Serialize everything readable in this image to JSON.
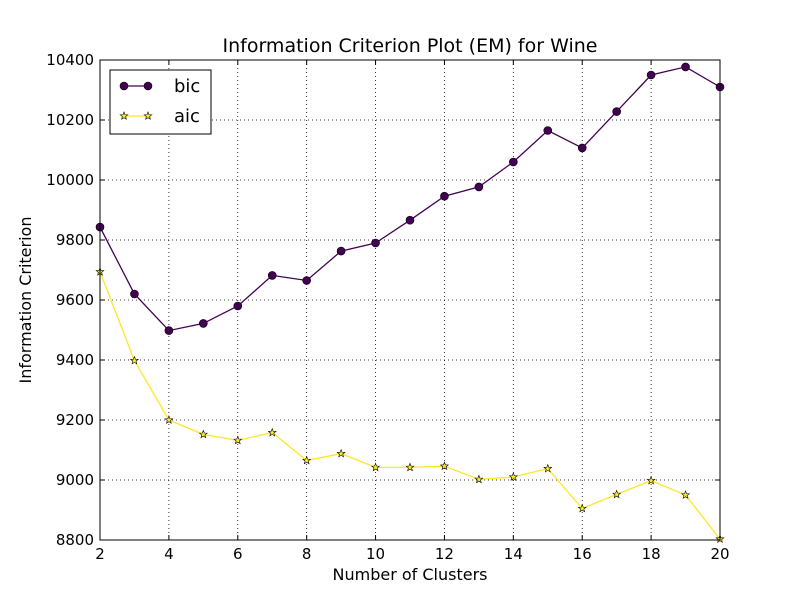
{
  "chart_data": {
    "type": "line",
    "title": "Information Criterion Plot (EM) for Wine",
    "xlabel": "Number of Clusters",
    "ylabel": "Information Criterion",
    "xlim": [
      2,
      20
    ],
    "ylim": [
      8800,
      10400
    ],
    "xticks": [
      2,
      4,
      6,
      8,
      10,
      12,
      14,
      16,
      18,
      20
    ],
    "yticks": [
      8800,
      9000,
      9200,
      9400,
      9600,
      9800,
      10000,
      10200,
      10400
    ],
    "grid": true,
    "legend_position": "top-left",
    "x": [
      2,
      3,
      4,
      5,
      6,
      7,
      8,
      9,
      10,
      11,
      12,
      13,
      14,
      15,
      16,
      17,
      18,
      19,
      20
    ],
    "series": [
      {
        "name": "bic",
        "color": "#440154",
        "marker": "circle",
        "values": [
          9843,
          9620,
          9498,
          9522,
          9580,
          9682,
          9665,
          9763,
          9790,
          9866,
          9946,
          9977,
          10060,
          10165,
          10107,
          10228,
          10350,
          10377,
          10310
        ]
      },
      {
        "name": "aic",
        "color": "#fde725",
        "marker": "star",
        "values": [
          9694,
          9398,
          9200,
          9152,
          9132,
          9158,
          9065,
          9088,
          9042,
          9042,
          9046,
          9002,
          9010,
          9038,
          8905,
          8952,
          8998,
          8950,
          8803
        ]
      }
    ]
  }
}
